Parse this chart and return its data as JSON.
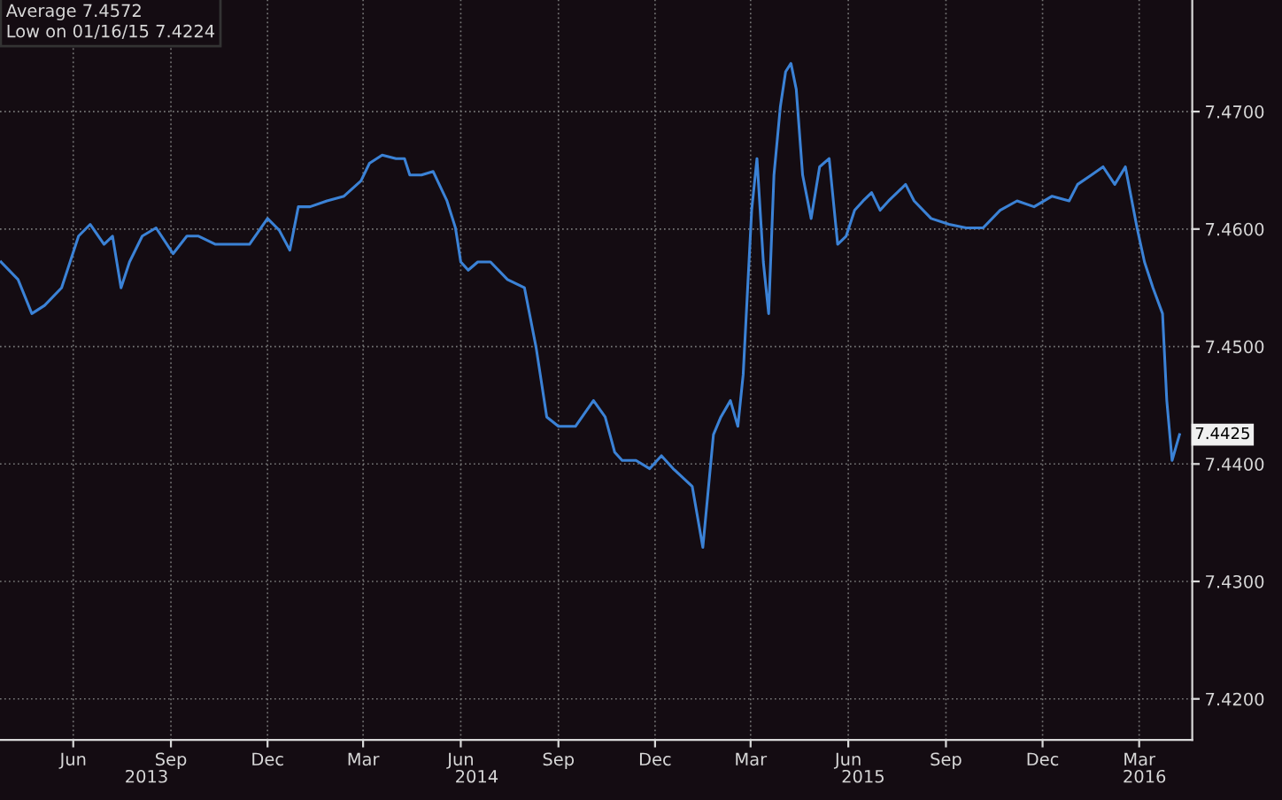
{
  "chart_data": {
    "type": "line",
    "annotations": [
      "Average 7.4572",
      "Low on 01/16/15 7.4224",
      {
        "text": "7.4425",
        "x": "2016-04-08",
        "y": 7.4425
      }
    ],
    "x": [
      "2013-03-25",
      "2013-04-10",
      "2013-04-23",
      "2013-05-05",
      "2013-05-21",
      "2013-06-06",
      "2013-06-17",
      "2013-06-30",
      "2013-07-08",
      "2013-07-16",
      "2013-07-24",
      "2013-08-05",
      "2013-08-18",
      "2013-09-03",
      "2013-09-16",
      "2013-09-27",
      "2013-10-13",
      "2013-10-29",
      "2013-11-14",
      "2013-12-01",
      "2013-12-12",
      "2013-12-22",
      "2013-12-30",
      "2014-01-10",
      "2014-01-26",
      "2014-02-11",
      "2014-02-27",
      "2014-03-07",
      "2014-03-19",
      "2014-04-01",
      "2014-04-09",
      "2014-04-14",
      "2014-04-25",
      "2014-05-06",
      "2014-05-19",
      "2014-05-27",
      "2014-06-01",
      "2014-06-08",
      "2014-06-17",
      "2014-06-29",
      "2014-07-15",
      "2014-07-31",
      "2014-08-11",
      "2014-08-21",
      "2014-09-01",
      "2014-09-17",
      "2014-10-04",
      "2014-10-15",
      "2014-10-24",
      "2014-10-31",
      "2014-11-13",
      "2014-11-26",
      "2014-12-07",
      "2014-12-18",
      "2015-01-05",
      "2015-01-15",
      "2015-01-25",
      "2015-02-01",
      "2015-02-10",
      "2015-02-17",
      "2015-02-22",
      "2015-03-02",
      "2015-03-07",
      "2015-03-13",
      "2015-03-18",
      "2015-03-23",
      "2015-03-29",
      "2015-04-03",
      "2015-04-08",
      "2015-04-13",
      "2015-04-19",
      "2015-04-27",
      "2015-05-05",
      "2015-05-14",
      "2015-05-22",
      "2015-05-30",
      "2015-06-07",
      "2015-06-15",
      "2015-06-23",
      "2015-07-01",
      "2015-07-09",
      "2015-07-25",
      "2015-08-02",
      "2015-08-18",
      "2015-09-04",
      "2015-09-20",
      "2015-10-06",
      "2015-10-22",
      "2015-11-07",
      "2015-11-23",
      "2015-12-10",
      "2015-12-26",
      "2016-01-03",
      "2016-01-16",
      "2016-01-27",
      "2016-02-07",
      "2016-02-17",
      "2016-02-28",
      "2016-03-06",
      "2016-03-14",
      "2016-03-23",
      "2016-03-27",
      "2016-04-01",
      "2016-04-08"
    ],
    "series": [
      {
        "color": "#3b82d6",
        "values": [
          7.4572,
          7.4557,
          7.4528,
          7.4535,
          7.455,
          7.4594,
          7.4604,
          7.4587,
          7.4594,
          7.455,
          7.4572,
          7.4594,
          7.4601,
          7.4579,
          7.4594,
          7.4594,
          7.4587,
          7.4587,
          7.4587,
          7.4609,
          7.4599,
          7.4582,
          7.4619,
          7.4619,
          7.4624,
          7.4628,
          7.4641,
          7.4656,
          7.4663,
          7.466,
          7.466,
          7.4646,
          7.4646,
          7.4649,
          7.4624,
          7.4601,
          7.4572,
          7.4565,
          7.4572,
          7.4572,
          7.4557,
          7.455,
          7.4499,
          7.444,
          7.4432,
          7.4432,
          7.4454,
          7.444,
          7.441,
          7.4403,
          7.4403,
          7.4396,
          7.4407,
          7.4396,
          7.4381,
          7.4329,
          7.4425,
          7.444,
          7.4454,
          7.4432,
          7.4476,
          7.4616,
          7.466,
          7.4572,
          7.4528,
          7.4646,
          7.4704,
          7.4734,
          7.4741,
          7.4719,
          7.4646,
          7.4609,
          7.4653,
          7.466,
          7.4587,
          7.4594,
          7.4616,
          7.4624,
          7.4631,
          7.4616,
          7.4624,
          7.4638,
          7.4624,
          7.4609,
          7.4604,
          7.4601,
          7.4601,
          7.4616,
          7.4624,
          7.4619,
          7.4628,
          7.4624,
          7.4638,
          7.4646,
          7.4653,
          7.4638,
          7.4653,
          7.4601,
          7.4572,
          7.455,
          7.4528,
          7.4454,
          7.4403,
          7.4425
        ]
      }
    ],
    "xlim": [
      "2013-03-24",
      "2016-04-20"
    ],
    "xticks": [
      {
        "value": "2013-06-01",
        "label": "Jun"
      },
      {
        "value": "2013-09-01",
        "label": "Sep"
      },
      {
        "value": "2013-12-01",
        "label": "Dec"
      },
      {
        "value": "2014-03-01",
        "label": "Mar"
      },
      {
        "value": "2014-06-01",
        "label": "Jun"
      },
      {
        "value": "2014-09-01",
        "label": "Sep"
      },
      {
        "value": "2014-12-01",
        "label": "Dec"
      },
      {
        "value": "2015-03-01",
        "label": "Mar"
      },
      {
        "value": "2015-06-01",
        "label": "Jun"
      },
      {
        "value": "2015-09-01",
        "label": "Sep"
      },
      {
        "value": "2015-12-01",
        "label": "Dec"
      },
      {
        "value": "2016-03-01",
        "label": "Mar"
      }
    ],
    "x2lim": [
      "2013-03-24",
      "2016-04-20"
    ],
    "x2ticks": [
      {
        "value": "2013-08-09",
        "label": "2013"
      },
      {
        "value": "2014-06-16",
        "label": "2014"
      },
      {
        "value": "2015-06-15",
        "label": "2015"
      },
      {
        "value": "2016-03-06",
        "label": "2016"
      }
    ],
    "ylim": [
      7.4165,
      7.4795
    ],
    "yticks": [
      {
        "value": 7.42,
        "label": "7.4200"
      },
      {
        "value": 7.43,
        "label": "7.4300"
      },
      {
        "value": 7.44,
        "label": "7.4400"
      },
      {
        "value": 7.45,
        "label": "7.4500"
      },
      {
        "value": 7.46,
        "label": "7.4600"
      },
      {
        "value": 7.47,
        "label": "7.4700"
      }
    ],
    "grid": true,
    "legend": false
  }
}
